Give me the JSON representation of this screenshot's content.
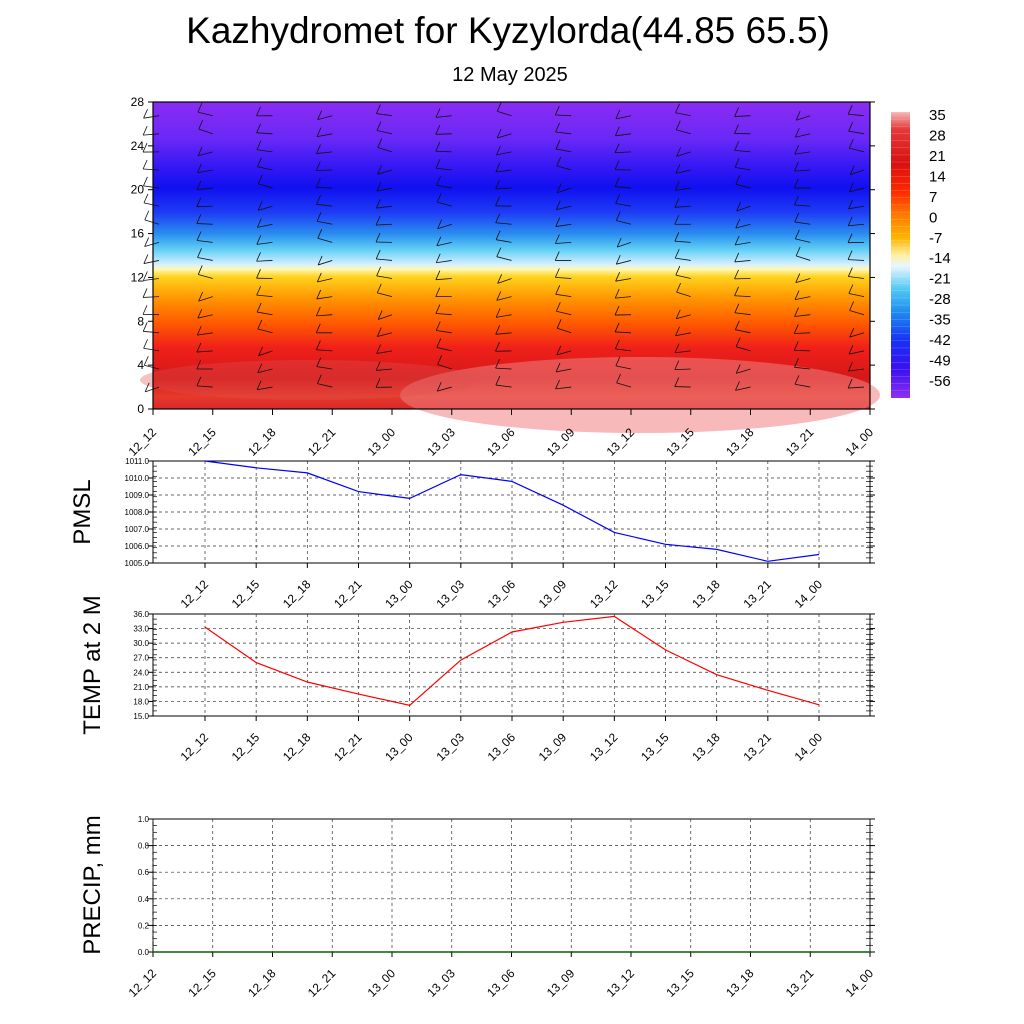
{
  "header": {
    "title": "Kazhydromet for Kyzylorda(44.85 65.5)",
    "subtitle": "12 May 2025"
  },
  "chart_data": [
    {
      "type": "heatmap",
      "name": "temperature-wind-profile",
      "x": [
        "12_12",
        "12_15",
        "12_18",
        "12_21",
        "13_00",
        "13_03",
        "13_06",
        "13_09",
        "13_12",
        "13_15",
        "13_18",
        "13_21",
        "14_00"
      ],
      "y_ticks": [
        "0",
        "4",
        "8",
        "12",
        "16",
        "20",
        "24",
        "28"
      ],
      "ylim": [
        0,
        28
      ],
      "colorbar": {
        "labels": [
          "35",
          "28",
          "21",
          "14",
          "7",
          "0",
          "-7",
          "-14",
          "-21",
          "-28",
          "-35",
          "-42",
          "-49",
          "-56"
        ],
        "values": [
          35,
          28,
          21,
          14,
          7,
          0,
          -7,
          -14,
          -21,
          -28,
          -35,
          -42,
          -49,
          -56
        ]
      },
      "overlay": "wind barbs"
    },
    {
      "type": "line",
      "name": "pmsl",
      "ylabel": "PMSL",
      "x": [
        "12_12",
        "12_15",
        "12_18",
        "12_21",
        "13_00",
        "13_03",
        "13_06",
        "13_09",
        "13_12",
        "13_15",
        "13_18",
        "13_21",
        "14_00"
      ],
      "values": [
        1011.0,
        1010.6,
        1010.3,
        1009.2,
        1008.8,
        1010.2,
        1009.8,
        1008.4,
        1006.8,
        1006.1,
        1005.8,
        1005.1,
        1005.5
      ],
      "ylim": [
        1005.0,
        1011.0
      ],
      "y_ticks": [
        "1005.0",
        "1006.0",
        "1007.0",
        "1008.0",
        "1009.0",
        "1010.0",
        "1011.0"
      ],
      "y_tick_values": [
        1005,
        1006,
        1007,
        1008,
        1009,
        1010,
        1011
      ],
      "color": "#0000ff",
      "grid": true
    },
    {
      "type": "line",
      "name": "temp",
      "ylabel": "TEMP at 2 M",
      "x": [
        "12_12",
        "12_15",
        "12_18",
        "12_21",
        "13_00",
        "13_03",
        "13_06",
        "13_09",
        "13_12",
        "13_15",
        "13_18",
        "13_21",
        "14_00"
      ],
      "values": [
        33.3,
        26.0,
        22.0,
        19.5,
        17.2,
        26.5,
        32.3,
        34.3,
        35.5,
        28.6,
        23.5,
        20.3,
        17.3
      ],
      "ylim": [
        15.0,
        36.0
      ],
      "y_ticks": [
        "15.0",
        "18.0",
        "21.0",
        "24.0",
        "27.0",
        "30.0",
        "33.0",
        "36.0"
      ],
      "y_tick_values": [
        15,
        18,
        21,
        24,
        27,
        30,
        33,
        36
      ],
      "color": "#ff0000",
      "grid": true
    },
    {
      "type": "line",
      "name": "precip",
      "ylabel": "PRECIP, mm",
      "x": [
        "12_12",
        "12_15",
        "12_18",
        "12_21",
        "13_00",
        "13_03",
        "13_06",
        "13_09",
        "13_12",
        "13_15",
        "13_18",
        "13_21",
        "14_00"
      ],
      "values": [
        0,
        0,
        0,
        0,
        0,
        0,
        0,
        0,
        0,
        0,
        0,
        0,
        0
      ],
      "ylim": [
        0.0,
        1.0
      ],
      "y_ticks": [
        "0.0",
        "0.2",
        "0.4",
        "0.6",
        "0.8",
        "1.0"
      ],
      "y_tick_values": [
        0,
        0.2,
        0.4,
        0.6,
        0.8,
        1.0
      ],
      "color": "#006400",
      "grid": true
    }
  ]
}
